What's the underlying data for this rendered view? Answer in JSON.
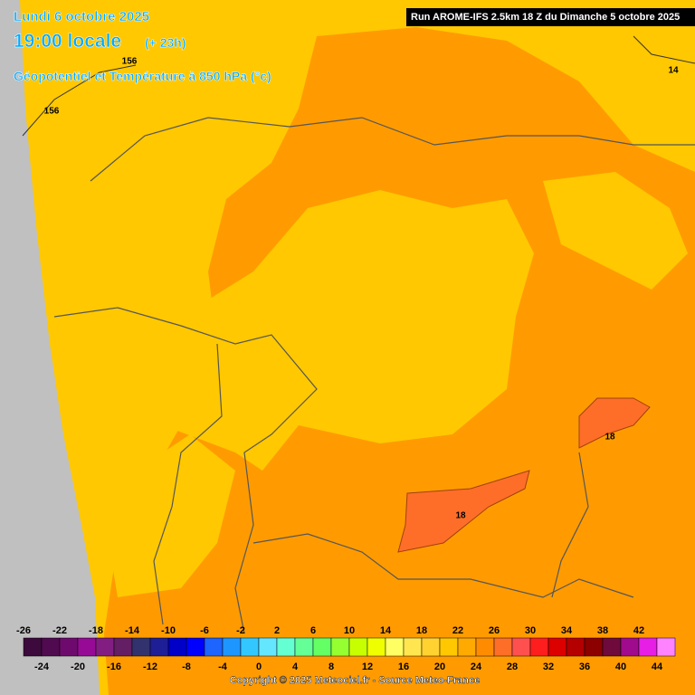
{
  "header": {
    "date": "Lundi 6 octobre 2025",
    "time": "19:00 locale",
    "lead": "(+ 23h)",
    "subtitle": "Géopotentiel et Température à 850 hPa (°c)",
    "run": "Run AROME-IFS 2.5km 18 Z du Dimanche 5 octobre 2025"
  },
  "contour_labels": [
    156,
    156,
    14,
    18,
    18
  ],
  "colorbar": {
    "ticks_top": [
      -26,
      -22,
      -18,
      -14,
      -10,
      -6,
      -2,
      2,
      6,
      10,
      14,
      18,
      22,
      26,
      30,
      34,
      38,
      42
    ],
    "ticks_bottom": [
      -24,
      -20,
      -16,
      -12,
      -8,
      -4,
      0,
      4,
      8,
      12,
      16,
      20,
      24,
      28,
      32,
      36,
      40,
      44
    ],
    "colors": [
      "#3c0a3c",
      "#500a50",
      "#6e0a6e",
      "#960a96",
      "#821e82",
      "#641e64",
      "#32326e",
      "#1e1e96",
      "#0000c8",
      "#0000ff",
      "#1e64ff",
      "#1e96ff",
      "#32c8ff",
      "#64e6ff",
      "#64ffd2",
      "#64ff96",
      "#64ff64",
      "#96ff32",
      "#c8ff00",
      "#f0ff00",
      "#ffff64",
      "#ffe650",
      "#ffd232",
      "#ffc800",
      "#ffaa00",
      "#ff8c00",
      "#ff6e28",
      "#ff5050",
      "#ff1e1e",
      "#dc0000",
      "#b40000",
      "#8c0000",
      "#6e0a3c",
      "#a00a8c",
      "#e61ee6",
      "#ff82ff"
    ]
  },
  "footer": {
    "copyright": "Copyright © 2025 Meteociel.fr - Source Meteo-France"
  }
}
